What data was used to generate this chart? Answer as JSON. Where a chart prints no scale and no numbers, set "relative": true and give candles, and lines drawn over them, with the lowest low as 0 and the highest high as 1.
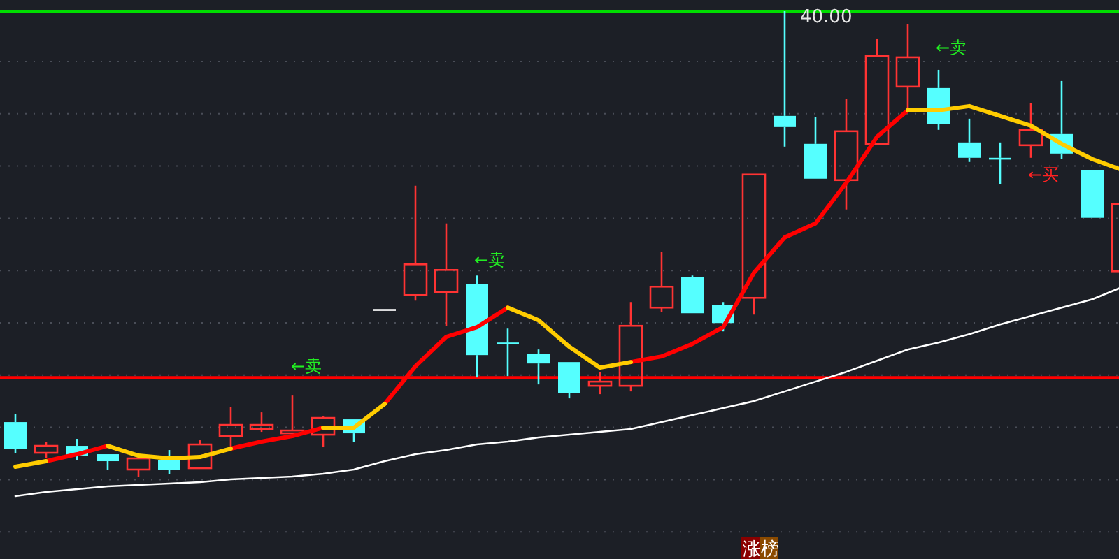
{
  "chart_data": {
    "type": "candlestick",
    "relative": true,
    "grid": true,
    "categories": [
      null,
      null,
      null,
      null,
      null,
      null,
      null,
      null,
      null,
      null,
      null,
      null,
      null,
      null,
      null,
      null,
      null,
      null,
      null,
      null,
      null,
      null,
      null,
      null,
      null,
      null,
      null,
      null,
      null,
      null,
      null,
      null,
      null,
      null,
      null,
      null,
      null
    ],
    "ohlc": [
      [
        0.117,
        0.135,
        0.051,
        0.06
      ],
      [
        0.051,
        0.075,
        0.039,
        0.066
      ],
      [
        0.066,
        0.081,
        0.036,
        0.045
      ],
      [
        0.048,
        0.048,
        0.015,
        0.033
      ],
      [
        0.015,
        0.039,
        0,
        0.039
      ],
      [
        0.036,
        0.057,
        0.006,
        0.015
      ],
      [
        0.018,
        0.078,
        0.018,
        0.069
      ],
      [
        0.087,
        0.15,
        0.06,
        0.111
      ],
      [
        0.102,
        0.138,
        0.096,
        0.111
      ],
      [
        0.093,
        0.174,
        0.093,
        0.099
      ],
      [
        0.09,
        0.129,
        0.063,
        0.126
      ],
      [
        0.123,
        0.123,
        0.075,
        0.093
      ],
      [
        0.36,
        0.36,
        0.36,
        0.36
      ],
      [
        0.39,
        0.625,
        0.378,
        0.456
      ],
      [
        0.396,
        0.544,
        0.324,
        0.444
      ],
      [
        0.414,
        0.432,
        0.213,
        0.261
      ],
      [
        0.288,
        0.318,
        0.216,
        0.288
      ],
      [
        0.264,
        0.273,
        0.198,
        0.243
      ],
      [
        0.246,
        0.246,
        0.168,
        0.18
      ],
      [
        0.195,
        0.225,
        0.177,
        0.204
      ],
      [
        0.195,
        0.375,
        0.183,
        0.324
      ],
      [
        0.363,
        0.483,
        0.354,
        0.408
      ],
      [
        0.429,
        0.432,
        0.351,
        0.351
      ],
      [
        0.369,
        0.375,
        0.312,
        0.33
      ],
      [
        0.384,
        0.649,
        0.348,
        0.649
      ],
      [
        0.775,
        1,
        0.709,
        0.751
      ],
      [
        0.715,
        0.772,
        0.64,
        0.64
      ],
      [
        0.637,
        0.811,
        0.574,
        0.742
      ],
      [
        0.715,
        0.94,
        0.715,
        0.904
      ],
      [
        0.838,
        0.973,
        0.787,
        0.901
      ],
      [
        0.835,
        0.874,
        0.745,
        0.757
      ],
      [
        0.718,
        0.769,
        0.676,
        0.685
      ],
      [
        0.685,
        0.718,
        0.628,
        0.685
      ],
      [
        0.712,
        0.802,
        0.685,
        0.745
      ],
      [
        0.736,
        0.85,
        0.682,
        0.694
      ],
      [
        0.658,
        0.658,
        0.556,
        0.556
      ],
      [
        0.441,
        0.586,
        0.441,
        0.586
      ]
    ],
    "colors": [
      "#55ffff",
      "#ff3333",
      "#55ffff",
      "#55ffff",
      "#ff3333",
      "#55ffff",
      "#ff3333",
      "#ff3333",
      "#ff3333",
      "#ff3333",
      "#ff3333",
      "#55ffff",
      "#ffffff",
      "#ff3333",
      "#ff3333",
      "#55ffff",
      "#55ffff",
      "#55ffff",
      "#55ffff",
      "#ff3333",
      "#ff3333",
      "#ff3333",
      "#55ffff",
      "#55ffff",
      "#ff3333",
      "#55ffff",
      "#55ffff",
      "#ff3333",
      "#ff3333",
      "#ff3333",
      "#55ffff",
      "#55ffff",
      "#55ffff",
      "#ff3333",
      "#55ffff",
      "#55ffff",
      "#ff3333"
    ],
    "series": [
      {
        "type": "line",
        "color": "#ffffff",
        "values": [
          -0.042,
          -0.033,
          -0.027,
          -0.021,
          -0.018,
          -0.015,
          -0.012,
          -0.006,
          -0.003,
          0,
          0.006,
          0.015,
          0.033,
          0.048,
          0.057,
          0.069,
          0.075,
          0.084,
          0.09,
          0.096,
          0.102,
          0.117,
          0.132,
          0.147,
          0.162,
          0.183,
          0.204,
          0.225,
          0.249,
          0.273,
          0.288,
          0.306,
          0.327,
          0.345,
          0.363,
          0.381,
          0.408
        ]
      },
      {
        "type": "line",
        "color": "#ff0000",
        "values": [
          null,
          0.033,
          0.048,
          0.066,
          null,
          null,
          null,
          0.06,
          0.075,
          0.087,
          0.105,
          null,
          0.156,
          0.237,
          0.3,
          0.321,
          0.363,
          null,
          null,
          null,
          0.246,
          0.258,
          0.285,
          0.321,
          0.438,
          0.514,
          0.544,
          0.631,
          0.73,
          0.787,
          null,
          null,
          null,
          null,
          null,
          null,
          null
        ]
      },
      {
        "type": "line",
        "color": "#ffcc00",
        "values": [
          0.021,
          0.033,
          null,
          0.066,
          0.045,
          0.039,
          0.042,
          0.06,
          null,
          null,
          0.105,
          0.105,
          0.156,
          null,
          null,
          null,
          0.363,
          0.336,
          0.279,
          0.234,
          0.246,
          null,
          null,
          null,
          null,
          null,
          null,
          null,
          null,
          0.787,
          0.787,
          0.796,
          0.775,
          0.754,
          0.715,
          0.682,
          0.658
        ]
      }
    ],
    "ref_lines": [
      {
        "axis": "y",
        "value": 0.213,
        "color": "#ff0000",
        "line_style": "solid"
      },
      {
        "axis": "y",
        "value": 1,
        "color": "#00dd00",
        "line_style": "solid"
      }
    ],
    "annotations": [
      {
        "text": "40.00",
        "y": 1
      },
      "←卖",
      "←卖",
      "←卖",
      "←买",
      "涨榜"
    ]
  }
}
